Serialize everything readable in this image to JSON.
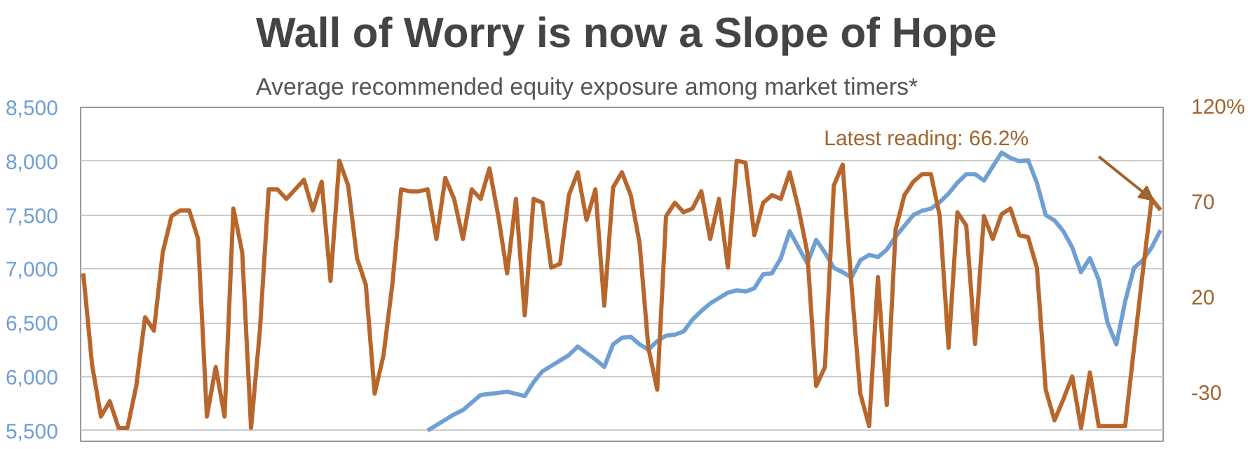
{
  "chart_data": {
    "type": "line",
    "title": "Wall of Worry is now a Slope of Hope",
    "subtitle": "Average recommended equity exposure among market timers*",
    "categories": [
      null,
      null,
      null,
      null,
      null,
      null,
      null,
      null,
      null,
      null,
      null,
      null,
      null,
      null,
      null,
      null,
      null,
      null,
      null,
      null,
      null,
      null,
      null,
      null,
      null,
      null,
      null,
      null,
      null,
      null,
      null,
      null,
      null,
      null,
      null,
      null,
      null,
      null,
      null,
      null,
      null,
      null,
      null,
      null,
      null,
      null,
      null,
      null,
      null,
      null,
      null,
      null,
      null,
      null,
      null,
      null,
      null,
      null,
      null,
      null,
      null,
      null,
      null,
      null,
      null,
      null,
      null,
      null,
      null,
      null,
      null,
      null,
      null,
      null,
      null,
      null,
      null,
      null,
      null,
      null,
      null,
      null,
      null,
      null,
      null,
      null,
      null,
      null,
      null,
      null,
      null,
      null,
      null,
      null,
      null,
      null,
      null,
      null,
      null,
      null,
      null,
      null,
      null,
      null,
      null,
      null,
      null,
      null,
      null,
      null,
      null,
      null,
      null,
      null,
      null,
      null,
      null,
      null,
      null,
      null,
      null,
      null,
      null
    ],
    "ylim": [
      5400,
      8500
    ],
    "yticks": [
      {
        "value": 5500,
        "label": "5,500"
      },
      {
        "value": 6000,
        "label": "6,000"
      },
      {
        "value": 6500,
        "label": "6,500"
      },
      {
        "value": 7000,
        "label": "7,000"
      },
      {
        "value": 7500,
        "label": "7,500"
      },
      {
        "value": 8000,
        "label": "8,000"
      },
      {
        "value": 8500,
        "label": "8,500"
      }
    ],
    "y2lim": [
      -55,
      120
    ],
    "y2ticks": [
      -30,
      20,
      70,
      {
        "value": 120,
        "label": "120%"
      }
    ],
    "tick_labels": "y",
    "grid": "y",
    "annotations": [
      "Latest reading:  66.2%"
    ],
    "series": [
      {
        "color": "#6f9fd3",
        "values": [
          null,
          null,
          null,
          null,
          null,
          null,
          null,
          null,
          null,
          null,
          null,
          null,
          null,
          null,
          null,
          null,
          null,
          null,
          null,
          null,
          null,
          null,
          null,
          null,
          null,
          null,
          null,
          null,
          null,
          null,
          null,
          null,
          null,
          null,
          null,
          null,
          null,
          null,
          null,
          5500,
          5550,
          5600,
          5650,
          5690,
          5760,
          5830,
          5840,
          5850,
          5860,
          5840,
          5820,
          5950,
          6050,
          6100,
          6150,
          6200,
          6280,
          6220,
          6160,
          6090,
          6300,
          6360,
          6370,
          6300,
          6250,
          6330,
          6380,
          6390,
          6420,
          6530,
          6610,
          6680,
          6730,
          6780,
          6800,
          6790,
          6820,
          6950,
          6960,
          7100,
          7350,
          7200,
          7050,
          7270,
          7150,
          7010,
          6970,
          6920,
          7080,
          7130,
          7110,
          7180,
          7300,
          7400,
          7500,
          7540,
          7560,
          7620,
          7700,
          7800,
          7880,
          7880,
          7820,
          7950,
          8080,
          8030,
          8000,
          8010,
          7800,
          7500,
          7450,
          7350,
          7200,
          6970,
          7100,
          6900,
          6500,
          6300,
          6700,
          7010,
          7080,
          7200,
          7360
        ]
      },
      {
        "color": "#b8672c",
        "axis": "y2",
        "values": [
          33,
          -15,
          -42,
          -34,
          -48,
          -48,
          -26,
          10,
          3,
          44,
          63,
          66,
          66,
          51,
          -42,
          -16,
          -42,
          67,
          44,
          -48,
          3,
          77,
          77,
          72,
          77,
          82,
          66,
          81,
          29,
          92,
          79,
          41,
          27,
          -30,
          -10,
          27,
          77,
          76,
          76,
          77,
          51,
          83,
          72,
          51,
          77,
          72,
          88,
          63,
          33,
          72,
          11,
          72,
          70,
          36,
          38,
          74,
          86,
          61,
          77,
          16,
          78,
          86,
          74,
          49,
          -6,
          -28,
          63,
          70,
          65,
          67,
          76,
          51,
          72,
          36,
          92,
          91,
          53,
          70,
          74,
          72,
          86,
          67,
          44,
          -26,
          -16,
          79,
          90,
          27,
          -30,
          -47,
          31,
          -36,
          56,
          74,
          81,
          85,
          85,
          63,
          -6,
          65,
          58,
          -4,
          63,
          51,
          64,
          67,
          53,
          52,
          36,
          -28,
          -44,
          -33,
          -21,
          -48,
          -19,
          -47,
          -47,
          -47,
          -47,
          -6,
          34,
          72,
          66.2
        ]
      }
    ]
  }
}
